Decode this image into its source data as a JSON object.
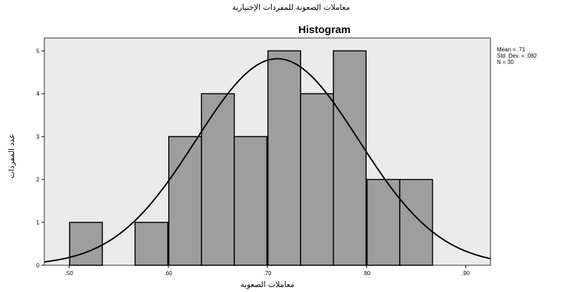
{
  "header": {
    "figure_title": "معاملات الصعوبة للمفردات الإختيارية"
  },
  "stats": {
    "mean": "Mean = .71",
    "std_dev": "Std. Dev. = .082",
    "n": "N = 30"
  },
  "chart_data": {
    "type": "bar",
    "title": "Histogram",
    "xlabel": "معاملات الصعوبة",
    "ylabel": "عدد المفردات",
    "bin_width": 0.033,
    "bins": [
      {
        "center": 0.517,
        "count": 1
      },
      {
        "center": 0.55,
        "count": 0
      },
      {
        "center": 0.583,
        "count": 1
      },
      {
        "center": 0.617,
        "count": 3
      },
      {
        "center": 0.65,
        "count": 4
      },
      {
        "center": 0.683,
        "count": 3
      },
      {
        "center": 0.717,
        "count": 5
      },
      {
        "center": 0.75,
        "count": 4
      },
      {
        "center": 0.783,
        "count": 5
      },
      {
        "center": 0.817,
        "count": 2
      },
      {
        "center": 0.85,
        "count": 2
      }
    ],
    "normal_curve": {
      "mean": 0.71,
      "sd": 0.082,
      "n": 30
    },
    "xlim": [
      0.475,
      0.925
    ],
    "ylim": [
      0,
      5.3
    ],
    "x_ticks": [
      0.5,
      0.6,
      0.7,
      0.8,
      0.9
    ],
    "x_tick_labels": [
      ".50",
      ".60",
      ".70",
      ".80",
      ".90"
    ],
    "y_ticks": [
      0,
      1,
      2,
      3,
      4,
      5
    ],
    "y_tick_labels": [
      "0",
      "1",
      "2",
      "3",
      "4",
      "5"
    ],
    "colors": {
      "plot_bg": "#ebebeb",
      "bar_fill": "#9e9e9e",
      "bar_stroke": "#000000",
      "curve": "#000000"
    }
  }
}
